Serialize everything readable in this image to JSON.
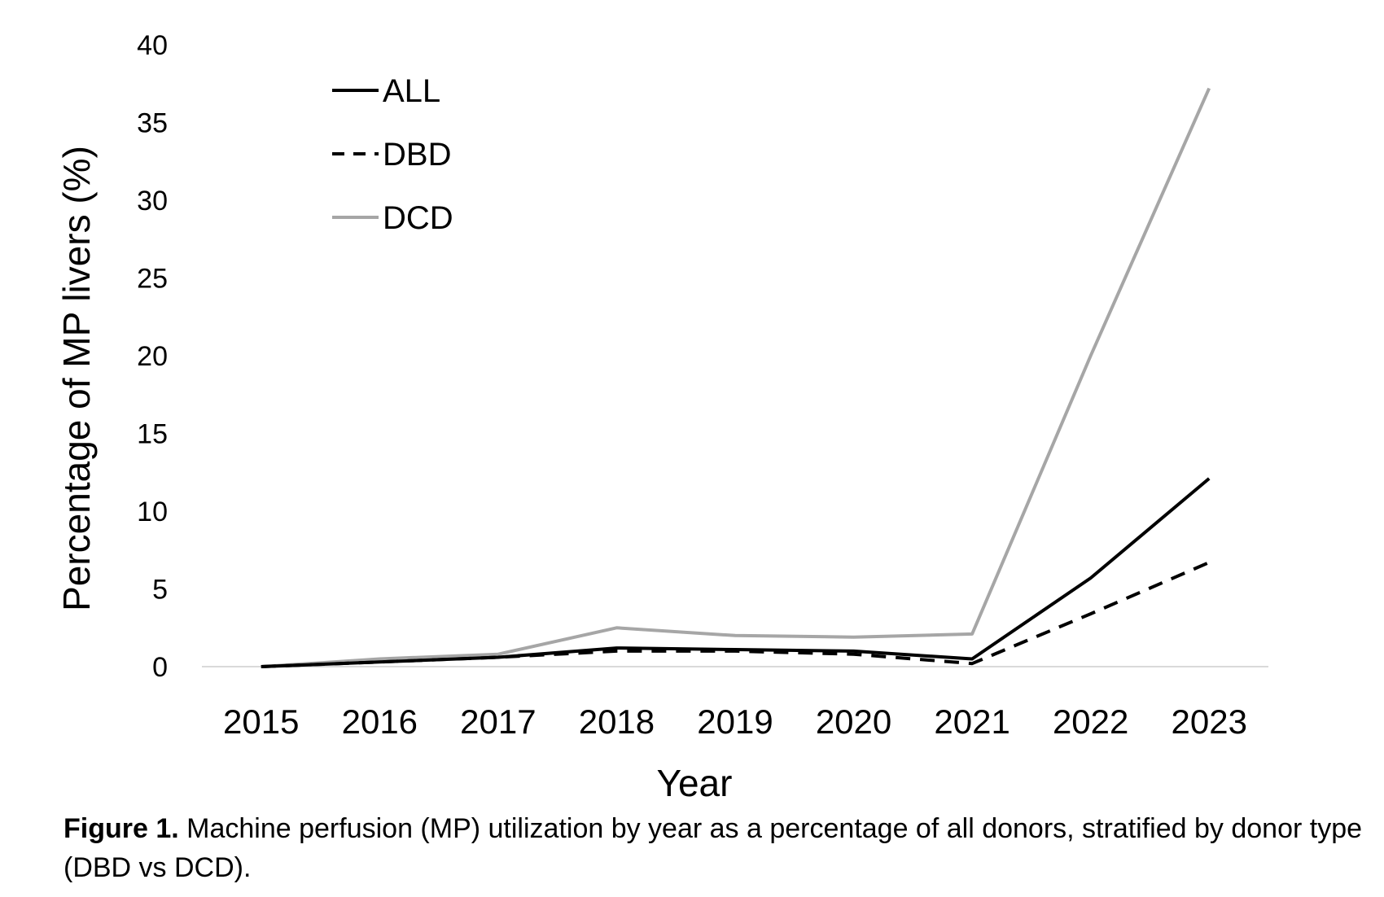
{
  "chart_data": {
    "type": "line",
    "x": [
      2015,
      2016,
      2017,
      2018,
      2019,
      2020,
      2021,
      2022,
      2023
    ],
    "categories": [
      "2015",
      "2016",
      "2017",
      "2018",
      "2019",
      "2020",
      "2021",
      "2022",
      "2023"
    ],
    "series": [
      {
        "name": "ALL",
        "color": "#000000",
        "dash": "solid",
        "values": [
          0,
          0.3,
          0.6,
          1.2,
          1.1,
          1.0,
          0.5,
          5.7,
          12.1
        ]
      },
      {
        "name": "DBD",
        "color": "#000000",
        "dash": "dashed",
        "values": [
          0,
          0.3,
          0.6,
          1.0,
          1.0,
          0.8,
          0.2,
          3.4,
          6.7
        ]
      },
      {
        "name": "DCD",
        "color": "#a6a6a6",
        "dash": "solid",
        "values": [
          0,
          0.5,
          0.8,
          2.5,
          2.0,
          1.9,
          2.1,
          20.0,
          37.2
        ]
      }
    ],
    "xlabel": "Year",
    "ylabel": "Percentage of MP livers (%)",
    "ylim": [
      0,
      40
    ],
    "yticks": [
      "0",
      "5",
      "10",
      "15",
      "20",
      "25",
      "30",
      "35",
      "40"
    ],
    "grid": false,
    "legend_position": "top-left"
  },
  "caption": {
    "lead": "Figure 1.",
    "text": " Machine perfusion (MP) utilization by year as a percentage of all donors, stratified by donor type (DBD vs DCD)."
  }
}
